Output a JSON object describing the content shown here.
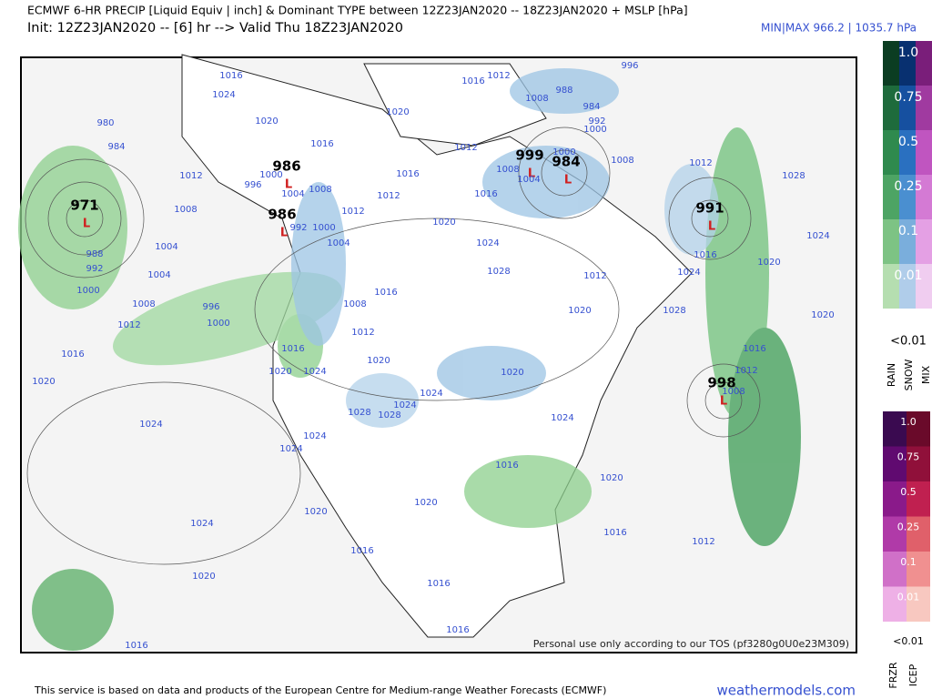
{
  "header": {
    "title": "ECMWF 6-HR PRECIP [Liquid Equiv | inch] & Dominant TYPE between 12Z23JAN2020 -- 18Z23JAN2020 + MSLP [hPa]",
    "subtitle": "Init: 12Z23JAN2020 -- [6] hr --> Valid Thu 18Z23JAN2020",
    "minmax": "MIN|MAX 966.2 | 1035.7 hPa"
  },
  "legend": {
    "levels": [
      "1.0",
      "0.75",
      "0.5",
      "0.25",
      "0.1",
      "0.01"
    ],
    "below": "<0.01",
    "types": [
      "RAIN",
      "SNOW",
      "MIX"
    ]
  },
  "legend2": {
    "levels": [
      "1.0",
      "0.75",
      "0.5",
      "0.25",
      "0.1",
      "0.01"
    ],
    "below": "<0.01",
    "types": [
      "FRZR",
      "ICEP"
    ]
  },
  "map": {
    "low_symbol": "L",
    "centers": [
      "971",
      "986",
      "986",
      "999",
      "984",
      "991",
      "998"
    ],
    "isobars": [
      "1016",
      "1024",
      "1020",
      "1016",
      "1012",
      "1000",
      "996",
      "1004",
      "1008",
      "1008",
      "992",
      "1000",
      "1004",
      "1012",
      "1004",
      "1004",
      "988",
      "992",
      "1000",
      "1008",
      "996",
      "1000",
      "1012",
      "1016",
      "1016",
      "1020",
      "1020",
      "1024",
      "1024",
      "1024",
      "1024",
      "1028",
      "1028",
      "1024",
      "1024",
      "1020",
      "1016",
      "1008",
      "1012",
      "1020",
      "1012",
      "1016",
      "1020",
      "1024",
      "1028",
      "1016",
      "1008",
      "1004",
      "1012",
      "1016",
      "1012",
      "1008",
      "988",
      "984",
      "992",
      "1000",
      "1000",
      "1008",
      "996",
      "1012",
      "1016",
      "1024",
      "1028",
      "1024",
      "1020",
      "1020",
      "1012",
      "1020",
      "1028",
      "1016",
      "1012",
      "1008",
      "1020",
      "1024",
      "1016",
      "1020",
      "1020",
      "1020",
      "1024",
      "1016",
      "1016",
      "1012",
      "1020",
      "1016",
      "1016",
      "1016",
      "980",
      "984"
    ],
    "notice": "Personal use only according to our TOS (pf3280g0U0e23M309)"
  },
  "footer": {
    "credit": "This service is based on data and products of the European Centre for Medium-range Weather Forecasts (ECMWF)",
    "site": "weathermodels.com"
  }
}
